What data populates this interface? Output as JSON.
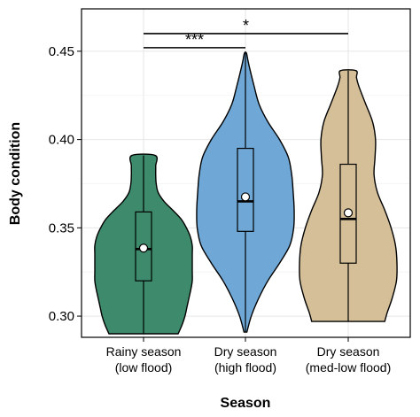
{
  "chart_data": {
    "type": "violin",
    "xlabel": "Season",
    "ylabel": "Body condition",
    "ylim": [
      0.288,
      0.474
    ],
    "yticks": [
      0.3,
      0.35,
      0.4,
      0.45
    ],
    "ytick_labels": [
      "0.30",
      "0.35",
      "0.40",
      "0.45"
    ],
    "grid": true,
    "categories": [
      {
        "line1": "Rainy season",
        "line2": "(low flood)"
      },
      {
        "line1": "Dry season",
        "line2": "(high flood)"
      },
      {
        "line1": "Dry season",
        "line2": "(med-low flood)"
      }
    ],
    "colors": [
      "#3d8b6c",
      "#6fa8d6",
      "#d4bf98"
    ],
    "violins": [
      {
        "min": 0.29,
        "max": 0.391,
        "q1": 0.32,
        "median": 0.338,
        "q3": 0.359,
        "whisker_low": 0.29,
        "whisker_high": 0.391,
        "mean": 0.3385,
        "density": [
          [
            0.29,
            0.71
          ],
          [
            0.295,
            0.79
          ],
          [
            0.3,
            0.85
          ],
          [
            0.305,
            0.89
          ],
          [
            0.31,
            0.93
          ],
          [
            0.315,
            0.97
          ],
          [
            0.32,
            1.0
          ],
          [
            0.325,
            1.0
          ],
          [
            0.33,
            1.0
          ],
          [
            0.335,
            1.0
          ],
          [
            0.34,
            1.0
          ],
          [
            0.345,
            0.96
          ],
          [
            0.35,
            0.88
          ],
          [
            0.355,
            0.77
          ],
          [
            0.36,
            0.6
          ],
          [
            0.365,
            0.42
          ],
          [
            0.37,
            0.3
          ],
          [
            0.375,
            0.26
          ],
          [
            0.38,
            0.25
          ],
          [
            0.385,
            0.25
          ],
          [
            0.391,
            0.24
          ]
        ]
      },
      {
        "min": 0.291,
        "max": 0.449,
        "q1": 0.348,
        "median": 0.365,
        "q3": 0.395,
        "whisker_low": 0.291,
        "whisker_high": 0.449,
        "mean": 0.3675,
        "density": [
          [
            0.291,
            0.03
          ],
          [
            0.3,
            0.12
          ],
          [
            0.31,
            0.27
          ],
          [
            0.32,
            0.46
          ],
          [
            0.33,
            0.7
          ],
          [
            0.34,
            0.91
          ],
          [
            0.35,
            0.99
          ],
          [
            0.36,
            1.0
          ],
          [
            0.37,
            0.98
          ],
          [
            0.38,
            0.95
          ],
          [
            0.39,
            0.88
          ],
          [
            0.4,
            0.7
          ],
          [
            0.41,
            0.46
          ],
          [
            0.42,
            0.28
          ],
          [
            0.43,
            0.18
          ],
          [
            0.44,
            0.09
          ],
          [
            0.445,
            0.05
          ],
          [
            0.449,
            0.02
          ]
        ]
      },
      {
        "min": 0.297,
        "max": 0.439,
        "q1": 0.33,
        "median": 0.355,
        "q3": 0.386,
        "whisker_low": 0.297,
        "whisker_high": 0.439,
        "mean": 0.3585,
        "density": [
          [
            0.297,
            0.75
          ],
          [
            0.302,
            0.8
          ],
          [
            0.31,
            0.9
          ],
          [
            0.32,
            0.99
          ],
          [
            0.33,
            1.0
          ],
          [
            0.34,
            0.97
          ],
          [
            0.35,
            0.88
          ],
          [
            0.36,
            0.75
          ],
          [
            0.37,
            0.6
          ],
          [
            0.38,
            0.53
          ],
          [
            0.39,
            0.55
          ],
          [
            0.4,
            0.56
          ],
          [
            0.41,
            0.5
          ],
          [
            0.42,
            0.36
          ],
          [
            0.43,
            0.22
          ],
          [
            0.435,
            0.17
          ],
          [
            0.439,
            0.16
          ]
        ]
      }
    ],
    "significance": [
      {
        "from": 0,
        "to": 1,
        "label": "***",
        "level": 0.452
      },
      {
        "from": 0,
        "to": 2,
        "label": "*",
        "level": 0.46
      }
    ]
  }
}
